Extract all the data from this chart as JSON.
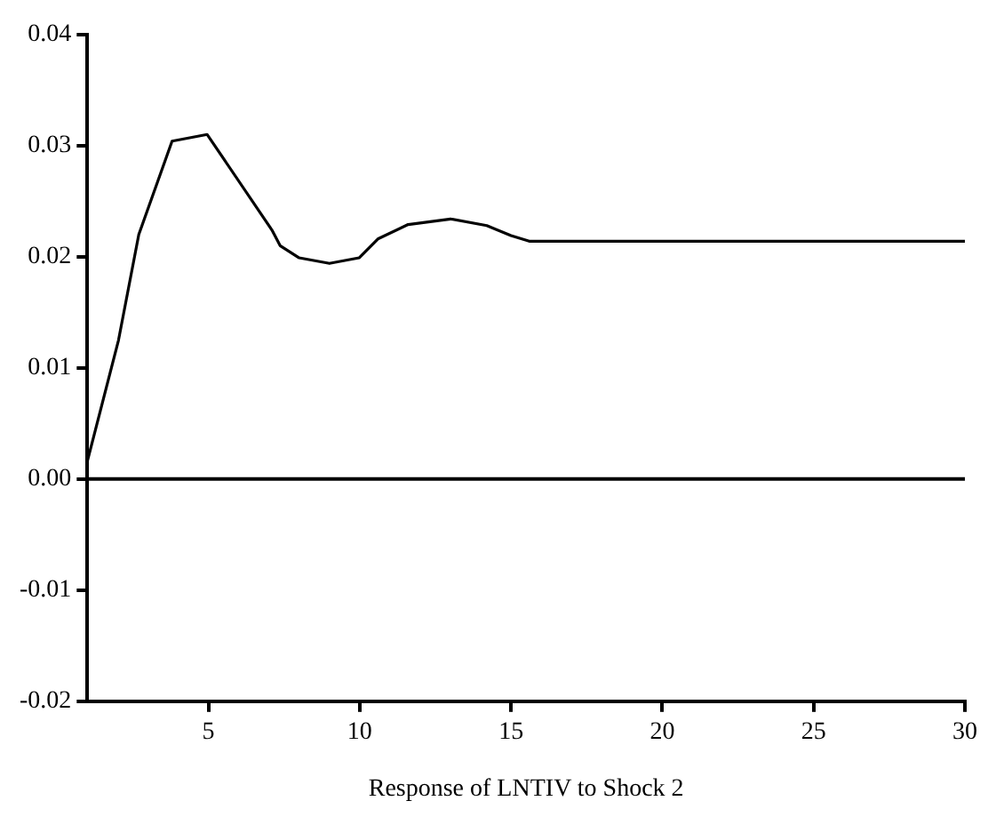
{
  "chart_data": {
    "type": "line",
    "xlabel": "Response of LNTIV to Shock 2",
    "x": [
      1,
      2.03,
      2.7,
      3.8,
      4.96,
      7.1,
      7.37,
      8.0,
      9.0,
      9.98,
      10.6,
      11.6,
      13.0,
      14.2,
      15.0,
      15.6,
      30
    ],
    "series": [
      {
        "color": "#000000",
        "values": [
          0.0016,
          0.0125,
          0.022,
          0.0304,
          0.031,
          0.0224,
          0.021,
          0.0199,
          0.0194,
          0.0199,
          0.0216,
          0.0229,
          0.0234,
          0.0228,
          0.0219,
          0.0214,
          0.0214
        ]
      }
    ],
    "xlim": [
      1,
      30
    ],
    "xticks": [
      5,
      10,
      15,
      20,
      25,
      30
    ],
    "ylim": [
      -0.02,
      0.04
    ],
    "yticks": [
      {
        "value": -0.02,
        "label": "-0.02"
      },
      {
        "value": -0.01,
        "label": "-0.01"
      },
      {
        "value": 0,
        "label": "0.00"
      },
      {
        "value": 0.01,
        "label": "0.01"
      },
      {
        "value": 0.02,
        "label": "0.02"
      },
      {
        "value": 0.03,
        "label": "0.03"
      },
      {
        "value": 0.04,
        "label": "0.04"
      }
    ],
    "ref_lines": [
      {
        "axis": "y",
        "value": 0,
        "color": "#000000"
      }
    ],
    "grid": false,
    "legend": false,
    "marker": "none",
    "line_style": "solid"
  }
}
